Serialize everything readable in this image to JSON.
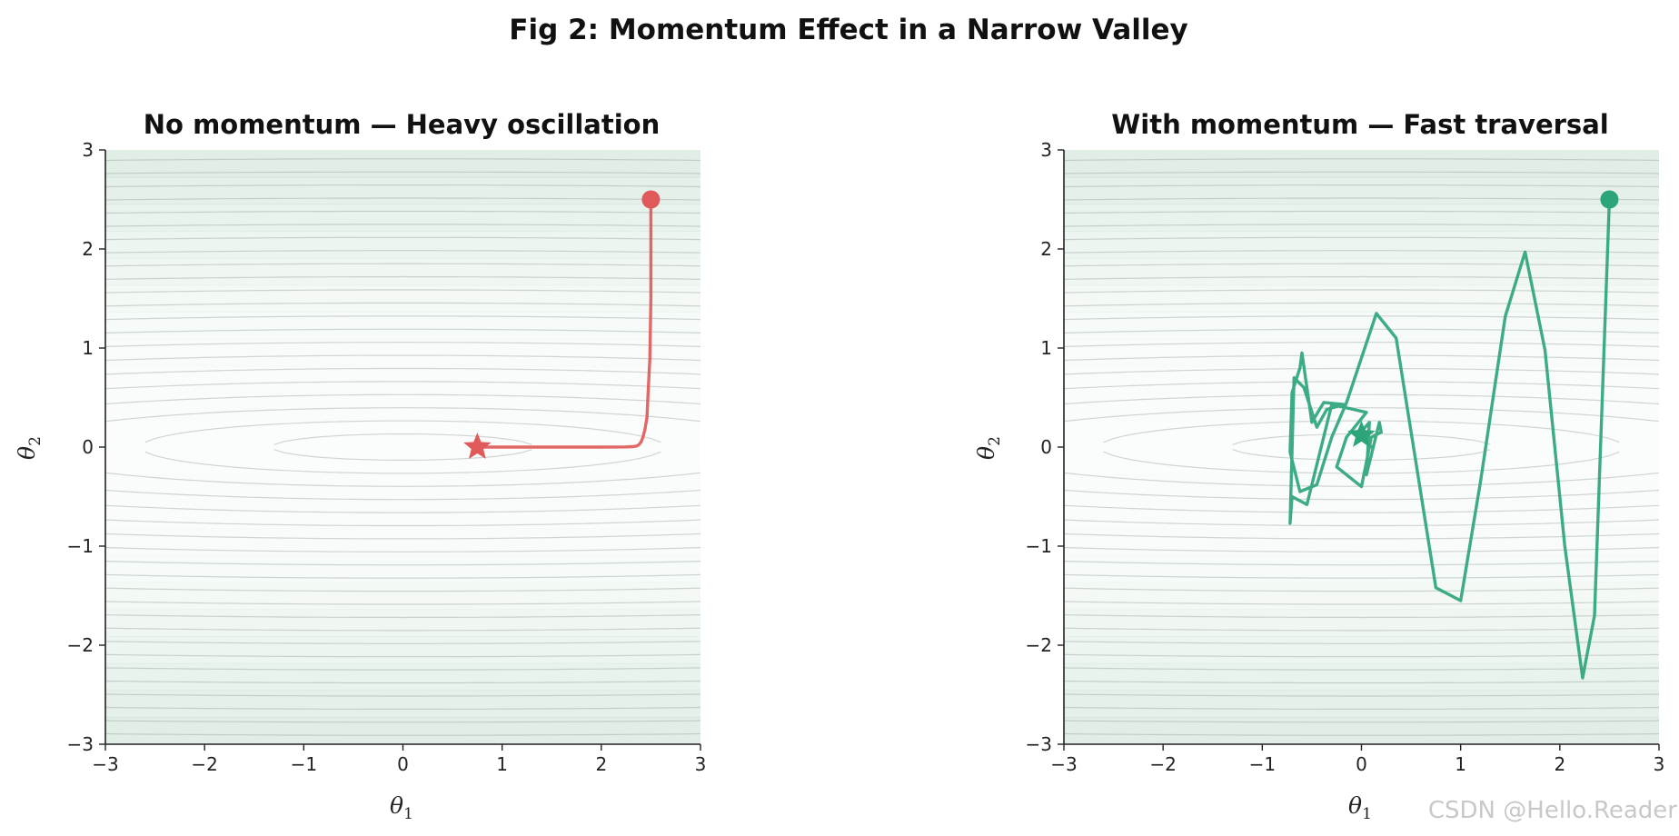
{
  "figure": {
    "suptitle": "Fig 2: Momentum Effect in a Narrow Valley",
    "watermark": "CSDN @Hello.Reader"
  },
  "chart_data": [
    {
      "type": "line",
      "title": "No momentum — Heavy oscillation",
      "xlabel": "θ1",
      "ylabel": "θ2",
      "xlim": [
        -3,
        3
      ],
      "ylim": [
        -3,
        3
      ],
      "xticks": [
        "−3",
        "−2",
        "−1",
        "0",
        "1",
        "2",
        "3"
      ],
      "yticks": [
        "−3",
        "−2",
        "−1",
        "0",
        "1",
        "2",
        "3"
      ],
      "grid": false,
      "background": "contour of a narrow valley loss surface",
      "color": "#e05a5a",
      "series": [
        {
          "start": [
            2.5,
            2.5
          ],
          "end": [
            0.75,
            0.0
          ],
          "x": [
            2.5,
            2.5,
            2.49,
            2.47,
            2.46,
            2.44,
            2.42,
            2.4,
            2.38,
            2.36,
            2.32,
            2.25,
            2.0,
            1.6,
            1.2,
            0.9,
            0.75
          ],
          "y": [
            2.5,
            1.5,
            0.9,
            0.5,
            0.3,
            0.18,
            0.1,
            0.05,
            0.025,
            0.012,
            0.005,
            0.002,
            0.0,
            0.0,
            0.0,
            0.0,
            0.0
          ]
        }
      ]
    },
    {
      "type": "line",
      "title": "With momentum — Fast traversal",
      "xlabel": "θ1",
      "ylabel": "θ2",
      "xlim": [
        -3,
        3
      ],
      "ylim": [
        -3,
        3
      ],
      "xticks": [
        "−3",
        "−2",
        "−1",
        "0",
        "1",
        "2",
        "3"
      ],
      "yticks": [
        "−3",
        "−2",
        "−1",
        "0",
        "1",
        "2",
        "3"
      ],
      "grid": false,
      "background": "contour of a narrow valley loss surface",
      "color": "#2ca57a",
      "series": [
        {
          "start": [
            2.5,
            2.5
          ],
          "end": [
            0.0,
            0.12
          ],
          "x": [
            2.5,
            2.35,
            2.23,
            2.05,
            1.85,
            1.65,
            1.45,
            1.2,
            1.0,
            0.75,
            0.35,
            0.15,
            -0.15,
            -0.3,
            -0.45,
            -0.62,
            -0.72,
            -0.7,
            -0.62,
            -0.6,
            -0.5,
            -0.38,
            -0.18,
            -0.35,
            -0.45,
            -0.58,
            -0.68,
            -0.72,
            -0.7,
            -0.55,
            -0.3,
            0.05,
            -0.15,
            -0.25,
            0.0,
            0.1,
            0.2,
            0.18,
            0.05,
            0.08,
            0.02,
            -0.05,
            0.1,
            0.0
          ],
          "y": [
            2.5,
            -1.7,
            -2.33,
            -1.0,
            0.98,
            1.97,
            1.32,
            -0.35,
            -1.55,
            -1.42,
            1.1,
            1.35,
            0.45,
            0.1,
            -0.38,
            -0.45,
            -0.05,
            0.55,
            0.8,
            0.95,
            0.25,
            0.45,
            0.43,
            0.38,
            0.2,
            0.6,
            0.7,
            -0.77,
            -0.5,
            -0.58,
            0.43,
            0.35,
            0.1,
            -0.2,
            -0.4,
            0.1,
            0.15,
            0.25,
            -0.28,
            0.25,
            0.18,
            0.12,
            0.0,
            0.12
          ]
        }
      ]
    }
  ]
}
